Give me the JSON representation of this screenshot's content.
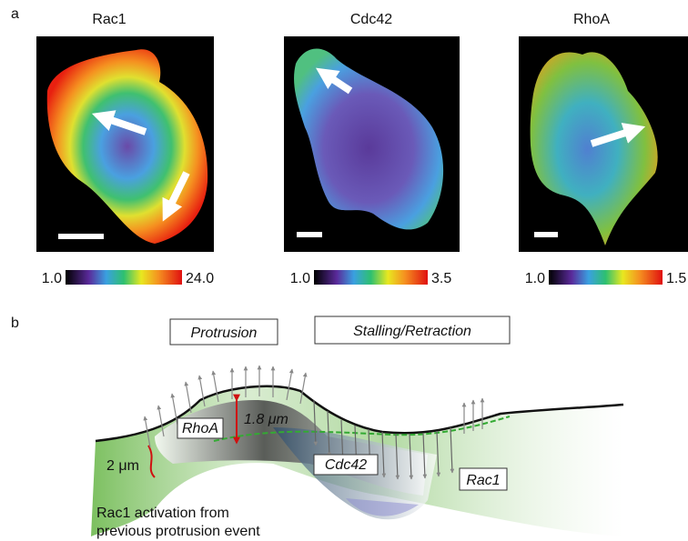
{
  "panel_a": {
    "label": "a",
    "images": [
      {
        "title": "Rac1",
        "scale_min": "1.0",
        "scale_max": "24.0"
      },
      {
        "title": "Cdc42",
        "scale_min": "1.0",
        "scale_max": "3.5"
      },
      {
        "title": "RhoA",
        "scale_min": "1.0",
        "scale_max": "1.5"
      }
    ]
  },
  "panel_b": {
    "label": "b",
    "phases": [
      "Protrusion",
      "Stalling/Retraction"
    ],
    "labels": {
      "rhoa": "RhoA",
      "height": "1.8 μm",
      "cdc42": "Cdc42",
      "rac1": "Rac1",
      "width": "2 μm"
    },
    "caption_lines": [
      "Rac1 activation from",
      "previous protrusion event"
    ]
  }
}
